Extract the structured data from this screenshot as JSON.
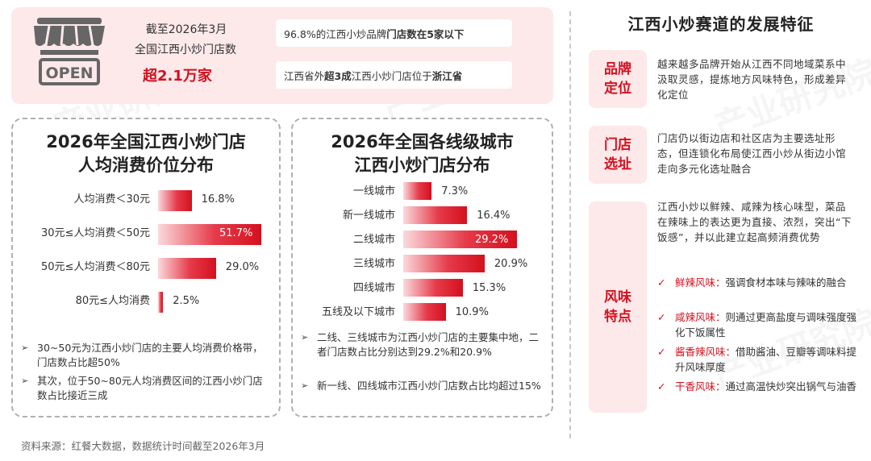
{
  "banner": {
    "stat_caption_line1": "截至2026年3月",
    "stat_caption_line2": "全国江西小炒门店数",
    "stat_value": "超2.1万家",
    "shop_sign": "OPEN",
    "fact1_prefix": "96.8%的江西小炒品牌",
    "fact1_bold": "门店数在5家以下",
    "fact2_prefix": "江西省外",
    "fact2_bold1": "超3成",
    "fact2_mid": "江西小炒门店位于",
    "fact2_bold2": "浙江省"
  },
  "watermark": "产业研究院",
  "chart_data": [
    {
      "type": "bar",
      "title_line1": "2026年全国江西小炒门店",
      "title_line2": "人均消费价位分布",
      "categories": [
        "人均消费＜30元",
        "30元≤人均消费＜50元",
        "50元≤人均消费＜80元",
        "80元≤人均消费"
      ],
      "values": [
        16.8,
        51.7,
        29.0,
        2.5
      ],
      "value_labels": [
        "16.8%",
        "51.7%",
        "29.0%",
        "2.5%"
      ],
      "xlim": [
        0,
        51.7
      ],
      "orientation": "horizontal"
    },
    {
      "type": "bar",
      "title_line1": "2026年全国各线级城市",
      "title_line2": "江西小炒门店分布",
      "categories": [
        "一线城市",
        "新一线城市",
        "二线城市",
        "三线城市",
        "四线城市",
        "五线及以下城市"
      ],
      "values": [
        7.3,
        16.4,
        29.2,
        20.9,
        15.3,
        10.9
      ],
      "value_labels": [
        "7.3%",
        "16.4%",
        "29.2%",
        "20.9%",
        "15.3%",
        "10.9%"
      ],
      "xlim": [
        0,
        29.2
      ],
      "orientation": "horizontal"
    }
  ],
  "notes_left": [
    "30~50元为江西小炒门店的主要人均消费价格带，门店数占比超50%",
    "其次，位于50~80元人均消费区间的江西小炒门店数占比接近三成"
  ],
  "notes_right": [
    "二线、三线城市为江西小炒门店的主要集中地，二者门店数占比分别达到29.2%和20.9%",
    "新一线、四线城市江西小炒门店数占比均超过15%"
  ],
  "bullet_symbol": "➢",
  "right_panel": {
    "title": "江西小炒赛道的发展特征",
    "sections": [
      {
        "tag_line1": "品牌",
        "tag_line2": "定位",
        "text": "越来越多品牌开始从江西不同地域菜系中汲取灵感，提炼地方风味特色，形成差异化定位"
      },
      {
        "tag_line1": "门店",
        "tag_line2": "选址",
        "text": "门店仍以街边店和社区店为主要选址形态，但连锁化布局使江西小炒从街边小馆走向多元化选址融合"
      },
      {
        "tag_line1": "风味",
        "tag_line2": "特点",
        "text": "江西小炒以鲜辣、咸辣为核心味型，菜品在辣味上的表达更为直接、浓烈，突出“下饭感”，并以此建立起高频消费优势"
      }
    ],
    "flavors": [
      {
        "name": "鲜辣风味：",
        "desc": "强调食材本味与辣味的融合"
      },
      {
        "name": "咸辣风味：",
        "desc": "则通过更高盐度与调味强度强化下饭属性"
      },
      {
        "name": "酱香辣风味：",
        "desc": "借助酱油、豆瓣等调味料提升风味厚度"
      },
      {
        "name": "干香风味：",
        "desc": "通过高温快炒突出锅气与油香"
      }
    ],
    "check_symbol": "✓"
  },
  "source": "资料来源：红餐大数据，数据统计时间截至2026年3月",
  "colors": {
    "accent": "#d4101e",
    "banner_bg": "#fde8ea",
    "bar_light": "#fbd9dc",
    "bar_dark": "#d4101e"
  }
}
